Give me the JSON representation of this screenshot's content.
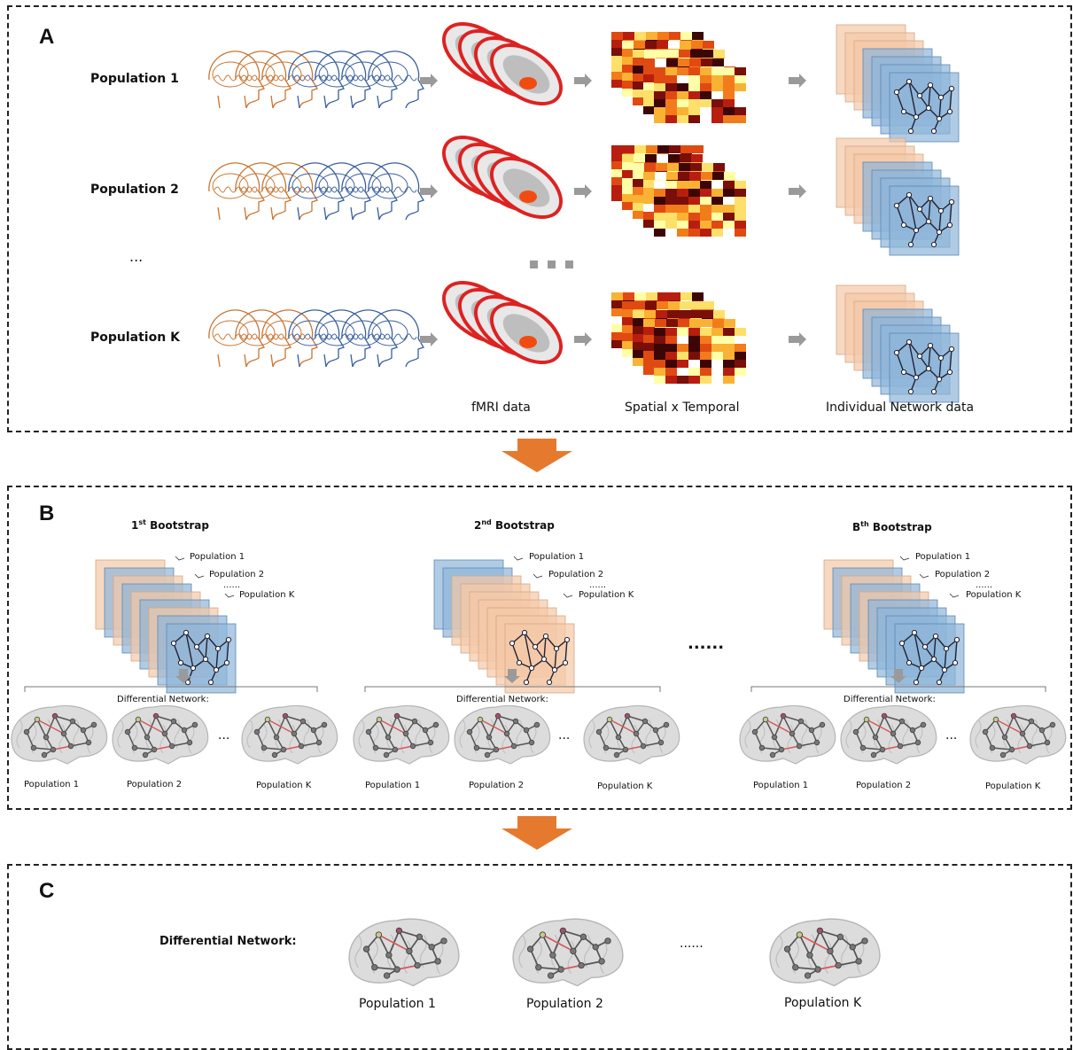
{
  "panel_a": {
    "letter": "A",
    "populations": [
      "Population 1",
      "Population 2",
      "Population K"
    ],
    "ellipsis_left": "...",
    "col_labels": [
      "fMRI data",
      "Spatial x Temporal",
      "Individual Network data"
    ]
  },
  "panel_b": {
    "letter": "B",
    "bootstraps": [
      {
        "title_pre": "1",
        "title_sup": "st",
        "title_post": " Bootstrap"
      },
      {
        "title_pre": "2",
        "title_sup": "nd",
        "title_post": " Bootstrap"
      },
      {
        "title_pre": "B",
        "title_sup": "th",
        "title_post": " Bootstrap"
      }
    ],
    "pop_tags": [
      "Population 1",
      "Population 2",
      "......",
      "Population K"
    ],
    "diff_label": "Differential Network:",
    "brain_labels": [
      "Population 1",
      "Population 2",
      "Population K"
    ],
    "between_ellipsis": "......",
    "brain_ellipsis": "..."
  },
  "panel_c": {
    "letter": "C",
    "diff_label": "Differential Network:",
    "brain_labels": [
      "Population 1",
      "Population 2",
      "Population K"
    ],
    "ellipsis": "......"
  },
  "colors": {
    "orange_arrow": "#e57a2e",
    "gray_arrow": "#9a9a9a",
    "head_orange": "#c87533",
    "head_blue": "#3a5f9e",
    "net_blue": "#8fb5d8",
    "net_peach": "#f3c9a8"
  }
}
